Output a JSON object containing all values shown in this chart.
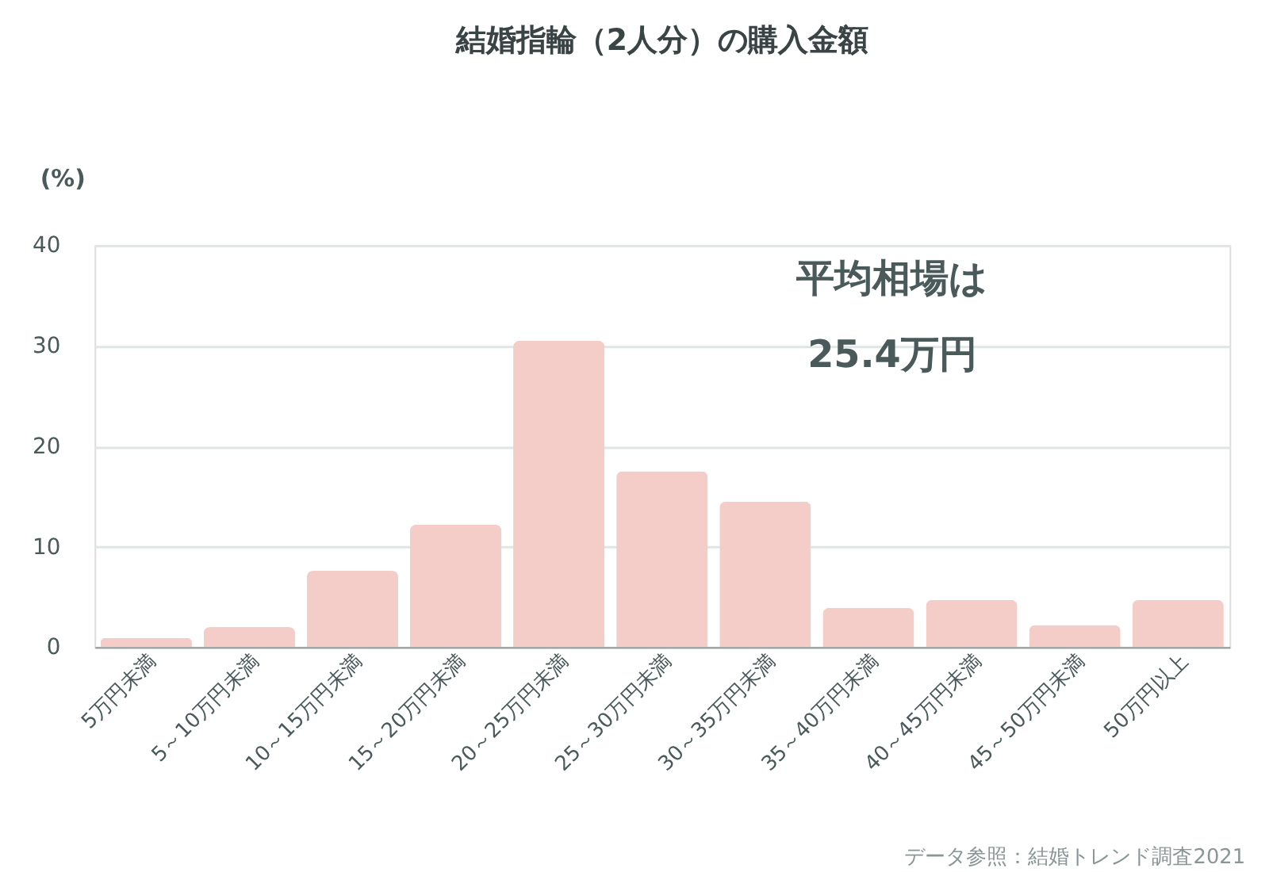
{
  "chart_data": {
    "type": "bar",
    "title": "結婚指輪（2人分）の購入金額",
    "ylabel": "(%)",
    "categories": [
      "5万円未満",
      "5～10万円未満",
      "10～15万円未満",
      "15～20万円未満",
      "20～25万円未満",
      "25～30万円未満",
      "30～35万円未満",
      "35～40万円未満",
      "40～45万円未満",
      "45～50万円未満",
      "50万円以上"
    ],
    "values": [
      0.9,
      2.0,
      7.6,
      12.2,
      30.5,
      17.5,
      14.5,
      3.9,
      4.7,
      2.2,
      4.7
    ],
    "color": "#f4cdc8",
    "ylim": [
      0,
      40
    ],
    "yticks": [
      0,
      10,
      20,
      30,
      40
    ],
    "grid": "y",
    "annotations": [
      "平均相場は\n25.4万円",
      "データ参照：結婚トレンド調査2021"
    ]
  }
}
